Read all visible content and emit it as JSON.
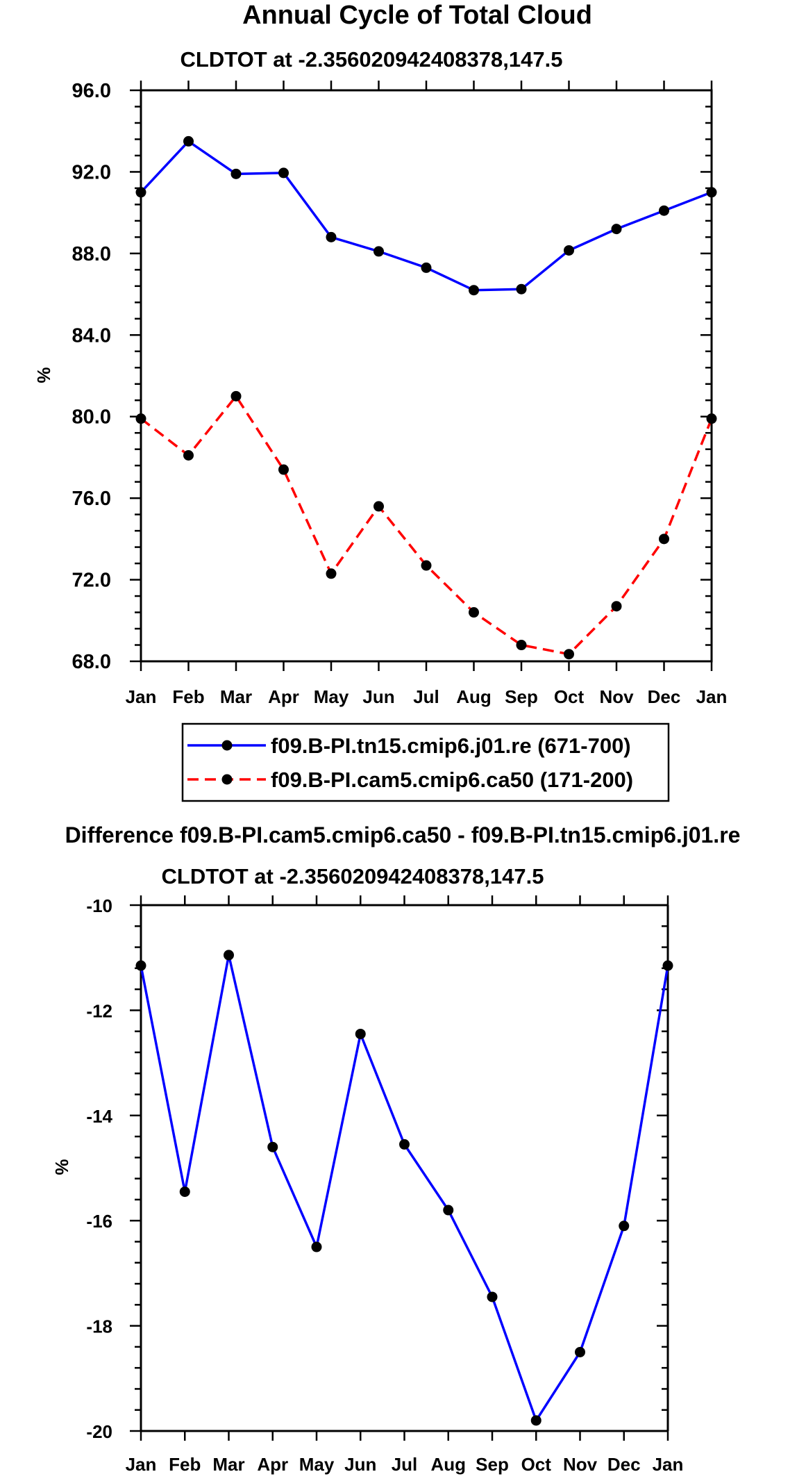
{
  "chart_data": [
    {
      "type": "line",
      "title": "Annual Cycle of Total Cloud",
      "subtitle": "CLDTOT at -2.356020942408378,147.5",
      "xlabel": "",
      "ylabel": "%",
      "categories": [
        "Jan",
        "Feb",
        "Mar",
        "Apr",
        "May",
        "Jun",
        "Jul",
        "Aug",
        "Sep",
        "Oct",
        "Nov",
        "Dec",
        "Jan"
      ],
      "ylim": [
        68,
        96
      ],
      "yticks": [
        "68.0",
        "72.0",
        "76.0",
        "80.0",
        "84.0",
        "88.0",
        "92.0",
        "96.0"
      ],
      "grid": false,
      "legend_position": "bottom",
      "series": [
        {
          "name": "f09.B-PI.tn15.cmip6.j01.re (671-700)",
          "color": "#0000ff",
          "dash": "solid",
          "values": [
            91.0,
            93.5,
            91.9,
            91.95,
            88.8,
            88.1,
            87.3,
            86.2,
            86.25,
            88.15,
            89.2,
            90.1,
            91.0
          ]
        },
        {
          "name": "f09.B-PI.cam5.cmip6.ca50 (171-200)",
          "color": "#ff0000",
          "dash": "dashed",
          "values": [
            79.9,
            78.1,
            81.0,
            77.4,
            72.3,
            75.6,
            72.7,
            70.4,
            68.8,
            68.35,
            70.7,
            74.0,
            79.9
          ]
        }
      ]
    },
    {
      "type": "line",
      "title": "Difference f09.B-PI.cam5.cmip6.ca50 - f09.B-PI.tn15.cmip6.j01.re",
      "subtitle": "CLDTOT at -2.356020942408378,147.5",
      "xlabel": "",
      "ylabel": "%",
      "categories": [
        "Jan",
        "Feb",
        "Mar",
        "Apr",
        "May",
        "Jun",
        "Jul",
        "Aug",
        "Sep",
        "Oct",
        "Nov",
        "Dec",
        "Jan"
      ],
      "ylim": [
        -20,
        -10
      ],
      "yticks": [
        "-20",
        "-18",
        "-16",
        "-14",
        "-12",
        "-10"
      ],
      "grid": false,
      "series": [
        {
          "color": "#0000ff",
          "dash": "solid",
          "values": [
            -11.15,
            -15.45,
            -10.95,
            -14.6,
            -16.5,
            -12.45,
            -14.55,
            -15.8,
            -17.45,
            -19.8,
            -18.5,
            -16.1,
            -11.15
          ]
        }
      ]
    }
  ]
}
